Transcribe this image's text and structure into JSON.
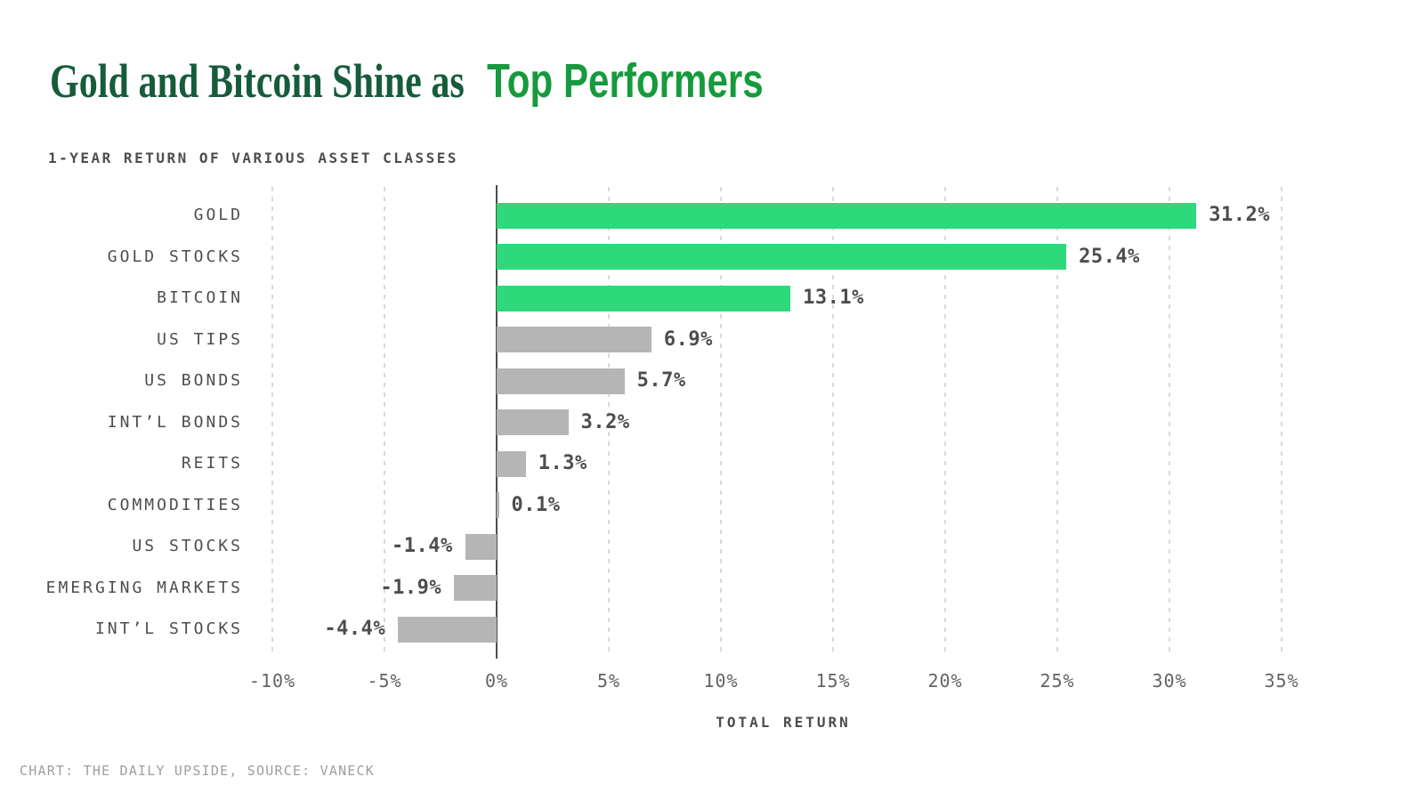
{
  "header": {
    "title_prefix": "Gold and Bitcoin Shine as",
    "title_highlight": "Top Performers",
    "subtitle": "1-YEAR RETURN OF VARIOUS ASSET CLASSES"
  },
  "chart_data": {
    "type": "bar",
    "orientation": "horizontal",
    "title": "Gold and Bitcoin Shine as Top Performers",
    "subtitle": "1-YEAR RETURN OF VARIOUS ASSET CLASSES",
    "xlabel": "TOTAL RETURN",
    "categories": [
      "GOLD",
      "GOLD STOCKS",
      "BITCOIN",
      "US TIPS",
      "US BONDS",
      "INT’L BONDS",
      "REITS",
      "COMMODITIES",
      "US STOCKS",
      "EMERGING MARKETS",
      "INT’L STOCKS"
    ],
    "values": [
      31.2,
      25.4,
      13.1,
      6.9,
      5.7,
      3.2,
      1.3,
      0.1,
      -1.4,
      -1.9,
      -4.4
    ],
    "value_labels": [
      "31.2%",
      "25.4%",
      "13.1%",
      "6.9%",
      "5.7%",
      "3.2%",
      "1.3%",
      "0.1%",
      "-1.4%",
      "-1.9%",
      "-4.4%"
    ],
    "highlighted": [
      true,
      true,
      true,
      false,
      false,
      false,
      false,
      false,
      false,
      false,
      false
    ],
    "x_ticks": [
      -10,
      -5,
      0,
      5,
      10,
      15,
      20,
      25,
      30,
      35
    ],
    "x_tick_labels": [
      "-10%",
      "-5%",
      "0%",
      "5%",
      "10%",
      "15%",
      "20%",
      "25%",
      "30%",
      "35%"
    ],
    "xlim": [
      -12,
      37.5
    ],
    "grid": "vertical-dashed",
    "legend": "none"
  },
  "colors": {
    "title_serif_green": "#175c3a",
    "title_highlight_green": "#169a3d",
    "bar_highlight": "#2ed97c",
    "bar_neutral": "#b5b5b5",
    "text_dark": "#4d4d4d",
    "tick_text": "#636363",
    "gridline": "#d9d9d9",
    "zero_axis": "#4d4d4d",
    "credit_text": "#9e9e9e",
    "background": "#ffffff"
  },
  "footer": {
    "credit": "CHART: THE DAILY UPSIDE, SOURCE: VANECK"
  }
}
